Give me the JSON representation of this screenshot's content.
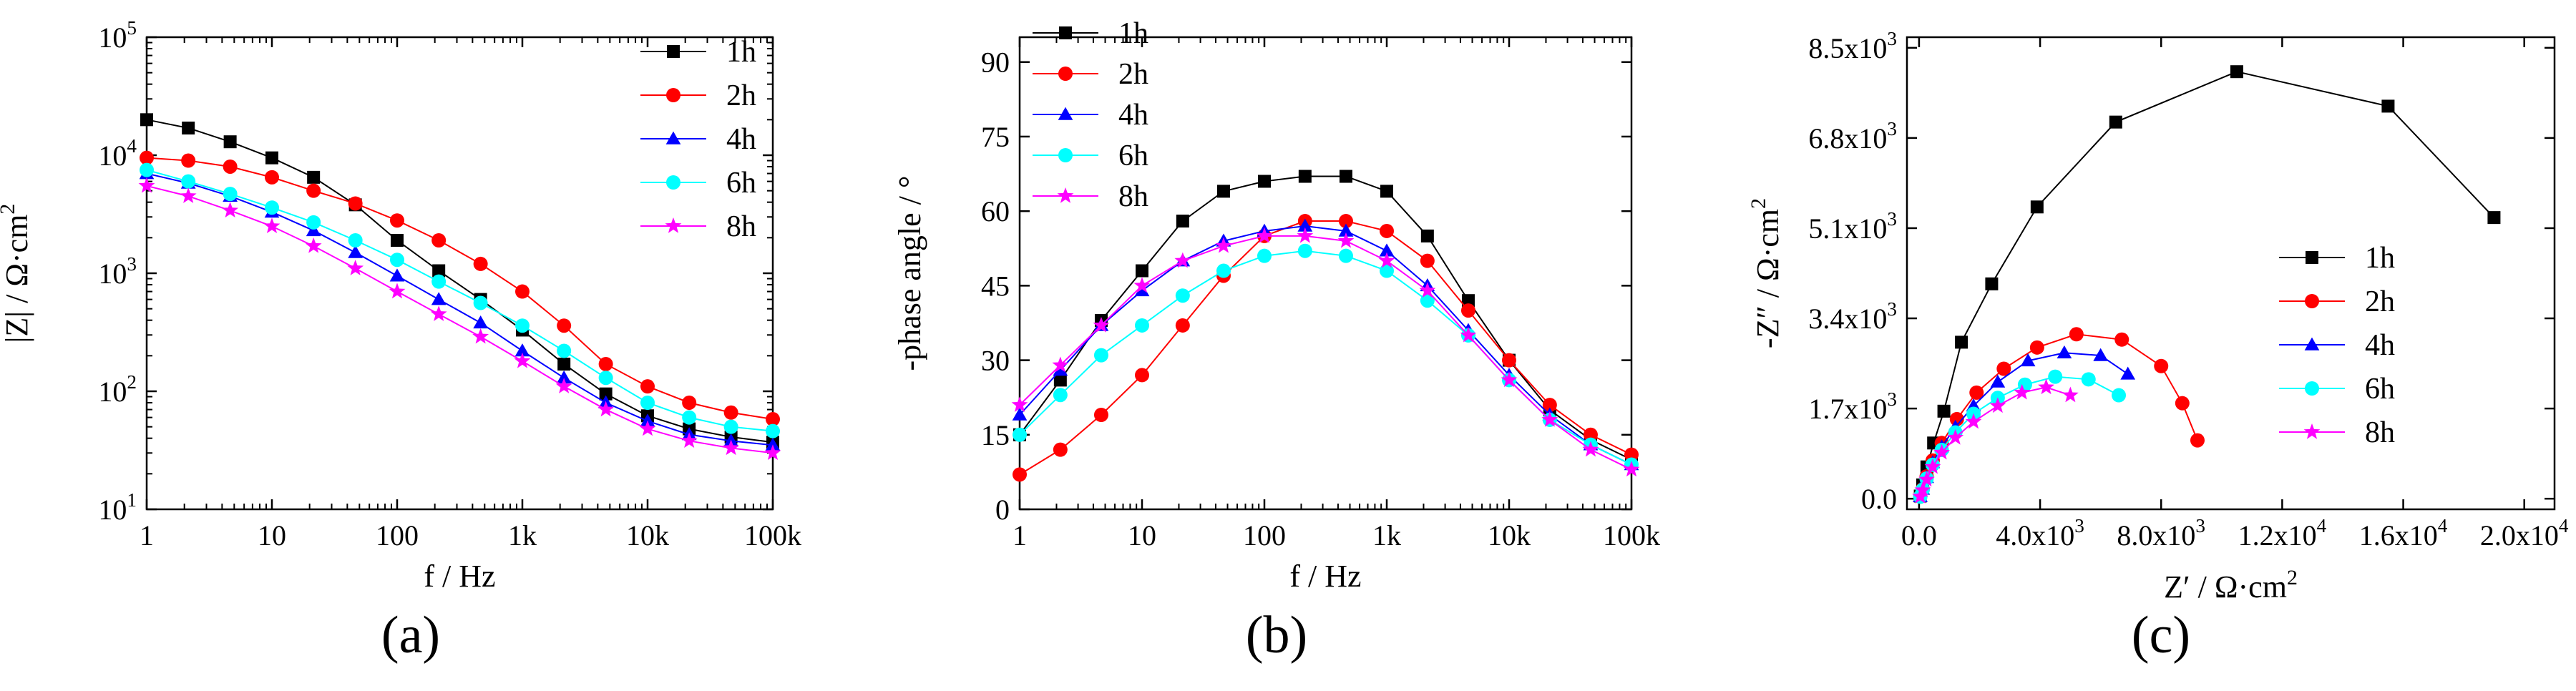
{
  "colors": {
    "1h": "#000000",
    "2h": "#ff0000",
    "4h": "#0000ff",
    "6h": "#00ffff",
    "8h": "#ff00ff",
    "axis": "#000000"
  },
  "chart_data": [
    {
      "id": "a",
      "type": "line",
      "panel_label": "(a)",
      "xscale": "log",
      "yscale": "log",
      "xlabel": "f / Hz",
      "ylabel": "|Z| / Ω·cm",
      "ylabel_sup": "2",
      "xlim": [
        1,
        100000
      ],
      "ylim": [
        10,
        100000
      ],
      "xticks": [
        {
          "value": 1,
          "label": "1"
        },
        {
          "value": 10,
          "label": "10"
        },
        {
          "value": 100,
          "label": "100"
        },
        {
          "value": 1000,
          "label": "1k"
        },
        {
          "value": 10000,
          "label": "10k"
        },
        {
          "value": 100000,
          "label": "100k"
        }
      ],
      "yticks": [
        {
          "value": 10,
          "base": "10",
          "exp": "1"
        },
        {
          "value": 100,
          "base": "10",
          "exp": "2"
        },
        {
          "value": 1000,
          "base": "10",
          "exp": "3"
        },
        {
          "value": 10000,
          "base": "10",
          "exp": "4"
        },
        {
          "value": 100000,
          "base": "10",
          "exp": "5"
        }
      ],
      "legend_position": "top-right",
      "series": [
        {
          "name": "1h",
          "color_key": "1h",
          "marker": "square",
          "x": [
            1,
            2.15,
            4.64,
            10,
            21.5,
            46.4,
            100,
            215,
            464,
            1000,
            2150,
            4640,
            10000,
            21500,
            46400,
            100000
          ],
          "y": [
            20000,
            17000,
            13000,
            9500,
            6500,
            3800,
            1900,
            1050,
            600,
            330,
            170,
            95,
            62,
            48,
            41,
            37
          ]
        },
        {
          "name": "2h",
          "color_key": "2h",
          "marker": "circle",
          "x": [
            1,
            2.15,
            4.64,
            10,
            21.5,
            46.4,
            100,
            215,
            464,
            1000,
            2150,
            4640,
            10000,
            21500,
            46400,
            100000
          ],
          "y": [
            9500,
            9000,
            8000,
            6500,
            5000,
            3900,
            2800,
            1900,
            1200,
            700,
            360,
            170,
            110,
            80,
            66,
            58
          ]
        },
        {
          "name": "4h",
          "color_key": "4h",
          "marker": "triangle",
          "x": [
            1,
            2.15,
            4.64,
            10,
            21.5,
            46.4,
            100,
            215,
            464,
            1000,
            2150,
            4640,
            10000,
            21500,
            46400,
            100000
          ],
          "y": [
            7000,
            5800,
            4500,
            3300,
            2300,
            1500,
            950,
            600,
            380,
            220,
            130,
            80,
            56,
            43,
            38,
            35
          ]
        },
        {
          "name": "6h",
          "color_key": "6h",
          "marker": "circle",
          "x": [
            1,
            2.15,
            4.64,
            10,
            21.5,
            46.4,
            100,
            215,
            464,
            1000,
            2150,
            4640,
            10000,
            21500,
            46400,
            100000
          ],
          "y": [
            7500,
            6000,
            4700,
            3600,
            2700,
            1900,
            1300,
            850,
            560,
            360,
            220,
            130,
            80,
            60,
            50,
            46
          ]
        },
        {
          "name": "8h",
          "color_key": "8h",
          "marker": "star",
          "x": [
            1,
            2.15,
            4.64,
            10,
            21.5,
            46.4,
            100,
            215,
            464,
            1000,
            2150,
            4640,
            10000,
            21500,
            46400,
            100000
          ],
          "y": [
            5500,
            4500,
            3400,
            2500,
            1700,
            1100,
            700,
            450,
            290,
            180,
            110,
            70,
            48,
            38,
            33,
            30
          ]
        }
      ]
    },
    {
      "id": "b",
      "type": "line",
      "panel_label": "(b)",
      "xscale": "log",
      "yscale": "linear",
      "xlabel": "f / Hz",
      "ylabel": "-phase angle / °",
      "xlim": [
        1,
        100000
      ],
      "ylim": [
        0,
        95
      ],
      "xticks": [
        {
          "value": 1,
          "label": "1"
        },
        {
          "value": 10,
          "label": "10"
        },
        {
          "value": 100,
          "label": "100"
        },
        {
          "value": 1000,
          "label": "1k"
        },
        {
          "value": 10000,
          "label": "10k"
        },
        {
          "value": 100000,
          "label": "100k"
        }
      ],
      "yticks": [
        {
          "value": 0,
          "label": "0"
        },
        {
          "value": 15,
          "label": "15"
        },
        {
          "value": 30,
          "label": "30"
        },
        {
          "value": 45,
          "label": "45"
        },
        {
          "value": 60,
          "label": "60"
        },
        {
          "value": 75,
          "label": "75"
        },
        {
          "value": 90,
          "label": "90"
        }
      ],
      "legend_position": "top-left",
      "series": [
        {
          "name": "1h",
          "color_key": "1h",
          "marker": "square",
          "x": [
            1,
            2.15,
            4.64,
            10,
            21.5,
            46.4,
            100,
            215,
            464,
            1000,
            2150,
            4640,
            10000,
            21500,
            46400,
            100000
          ],
          "y": [
            15,
            26,
            38,
            48,
            58,
            64,
            66,
            67,
            67,
            64,
            55,
            42,
            30,
            20,
            14,
            10
          ]
        },
        {
          "name": "2h",
          "color_key": "2h",
          "marker": "circle",
          "x": [
            1,
            2.15,
            4.64,
            10,
            21.5,
            46.4,
            100,
            215,
            464,
            1000,
            2150,
            4640,
            10000,
            21500,
            46400,
            100000
          ],
          "y": [
            7,
            12,
            19,
            27,
            37,
            47,
            55,
            58,
            58,
            56,
            50,
            40,
            30,
            21,
            15,
            11
          ]
        },
        {
          "name": "4h",
          "color_key": "4h",
          "marker": "triangle",
          "x": [
            1,
            2.15,
            4.64,
            10,
            21.5,
            46.4,
            100,
            215,
            464,
            1000,
            2150,
            4640,
            10000,
            21500,
            46400,
            100000
          ],
          "y": [
            19,
            28,
            37,
            44,
            50,
            54,
            56,
            57,
            56,
            52,
            45,
            36,
            27,
            19,
            13,
            9
          ]
        },
        {
          "name": "6h",
          "color_key": "6h",
          "marker": "circle",
          "x": [
            1,
            2.15,
            4.64,
            10,
            21.5,
            46.4,
            100,
            215,
            464,
            1000,
            2150,
            4640,
            10000,
            21500,
            46400,
            100000
          ],
          "y": [
            15,
            23,
            31,
            37,
            43,
            48,
            51,
            52,
            51,
            48,
            42,
            35,
            26,
            18,
            13,
            9
          ]
        },
        {
          "name": "8h",
          "color_key": "8h",
          "marker": "star",
          "x": [
            1,
            2.15,
            4.64,
            10,
            21.5,
            46.4,
            100,
            215,
            464,
            1000,
            2150,
            4640,
            10000,
            21500,
            46400,
            100000
          ],
          "y": [
            21,
            29,
            37,
            45,
            50,
            53,
            55,
            55,
            54,
            50,
            44,
            35,
            26,
            18,
            12,
            8
          ]
        }
      ]
    },
    {
      "id": "c",
      "type": "line",
      "panel_label": "(c)",
      "xscale": "linear",
      "yscale": "linear",
      "xlabel": "Z′ / Ω·cm",
      "xlabel_sup": "2",
      "ylabel": "-Z″ / Ω·cm",
      "ylabel_sup": "2",
      "xlim": [
        -400,
        21000
      ],
      "ylim": [
        -200,
        8700
      ],
      "xticks": [
        {
          "value": 0,
          "label": "0.0"
        },
        {
          "value": 4000,
          "base": "4.0x10",
          "exp": "3"
        },
        {
          "value": 8000,
          "base": "8.0x10",
          "exp": "3"
        },
        {
          "value": 12000,
          "base": "1.2x10",
          "exp": "4"
        },
        {
          "value": 16000,
          "base": "1.6x10",
          "exp": "4"
        },
        {
          "value": 20000,
          "base": "2.0x10",
          "exp": "4"
        }
      ],
      "yticks": [
        {
          "value": 0,
          "label": "0.0"
        },
        {
          "value": 1700,
          "base": "1.7x10",
          "exp": "3"
        },
        {
          "value": 3400,
          "base": "3.4x10",
          "exp": "3"
        },
        {
          "value": 5100,
          "base": "5.1x10",
          "exp": "3"
        },
        {
          "value": 6800,
          "base": "6.8x10",
          "exp": "3"
        },
        {
          "value": 8500,
          "base": "8.5x10",
          "exp": "3"
        }
      ],
      "legend_position": "center-right",
      "series": [
        {
          "name": "1h",
          "color_key": "1h",
          "marker": "square",
          "x": [
            40,
            120,
            260,
            480,
            820,
            1400,
            2400,
            3900,
            6500,
            10500,
            15500,
            19000
          ],
          "y": [
            50,
            260,
            600,
            1050,
            1650,
            2950,
            4050,
            5500,
            7100,
            8050,
            7400,
            5300
          ]
        },
        {
          "name": "2h",
          "color_key": "2h",
          "marker": "circle",
          "x": [
            40,
            120,
            250,
            450,
            750,
            1250,
            1900,
            2800,
            3900,
            5200,
            6700,
            8000,
            8700,
            9200
          ],
          "y": [
            40,
            180,
            420,
            720,
            1050,
            1500,
            2000,
            2450,
            2850,
            3100,
            3000,
            2500,
            1800,
            1100
          ]
        },
        {
          "name": "4h",
          "color_key": "4h",
          "marker": "triangle",
          "x": [
            40,
            120,
            250,
            450,
            750,
            1200,
            1800,
            2600,
            3600,
            4800,
            6000,
            6900
          ],
          "y": [
            40,
            180,
            400,
            680,
            980,
            1350,
            1750,
            2200,
            2600,
            2750,
            2700,
            2350
          ]
        },
        {
          "name": "6h",
          "color_key": "6h",
          "marker": "circle",
          "x": [
            40,
            120,
            250,
            450,
            750,
            1200,
            1800,
            2600,
            3500,
            4500,
            5600,
            6600
          ],
          "y": [
            40,
            170,
            380,
            640,
            920,
            1250,
            1600,
            1900,
            2150,
            2300,
            2250,
            1950
          ]
        },
        {
          "name": "8h",
          "color_key": "8h",
          "marker": "star",
          "x": [
            40,
            120,
            250,
            450,
            750,
            1200,
            1800,
            2600,
            3400,
            4200,
            5000
          ],
          "y": [
            40,
            160,
            360,
            600,
            870,
            1150,
            1450,
            1750,
            2000,
            2100,
            1950
          ]
        }
      ]
    }
  ]
}
